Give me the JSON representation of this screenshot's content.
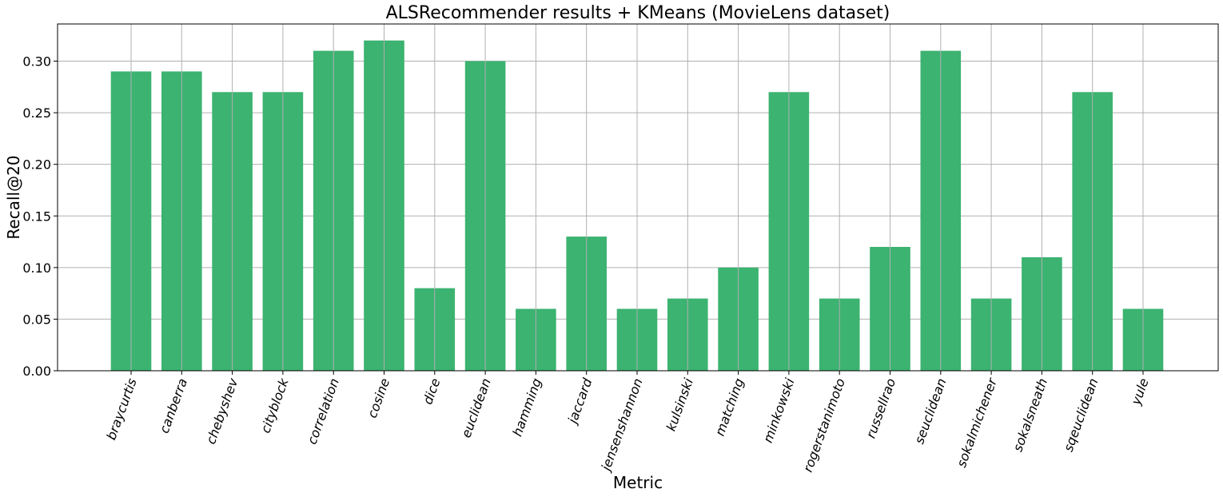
{
  "chart_data": {
    "type": "bar",
    "title": "ALSRecommender results + KMeans (MovieLens dataset)",
    "xlabel": "Metric",
    "ylabel": "Recall@20",
    "categories": [
      "braycurtis",
      "canberra",
      "chebyshev",
      "cityblock",
      "correlation",
      "cosine",
      "dice",
      "euclidean",
      "hamming",
      "jaccard",
      "jensenshannon",
      "kulsinski",
      "matching",
      "minkowski",
      "rogerstanimoto",
      "russellrao",
      "seuclidean",
      "sokalmichener",
      "sokalsneath",
      "sqeuclidean",
      "yule"
    ],
    "values": [
      0.29,
      0.29,
      0.27,
      0.27,
      0.31,
      0.32,
      0.08,
      0.3,
      0.06,
      0.13,
      0.06,
      0.07,
      0.1,
      0.27,
      0.07,
      0.12,
      0.31,
      0.07,
      0.11,
      0.27,
      0.06
    ],
    "ylim": [
      0,
      0.336
    ],
    "yticks": [
      "0.00",
      "0.05",
      "0.10",
      "0.15",
      "0.20",
      "0.25",
      "0.30"
    ],
    "grid": true,
    "bar_color": "#3cb371"
  }
}
